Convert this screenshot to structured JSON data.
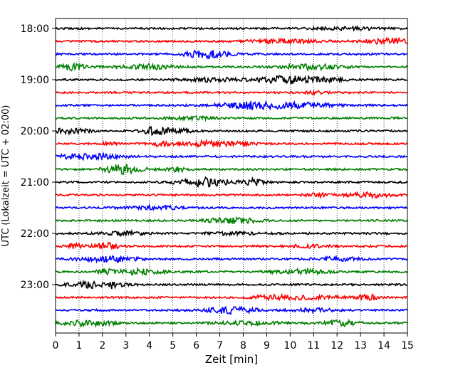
{
  "chart_data": {
    "type": "line",
    "title": "",
    "xlabel": "Zeit  [min]",
    "ylabel": "UTC (Lokalzeit = UTC + 02:00)",
    "xlim": [
      0,
      15
    ],
    "x_ticks": [
      "0",
      "1",
      "2",
      "3",
      "4",
      "5",
      "6",
      "7",
      "8",
      "9",
      "10",
      "11",
      "12",
      "13",
      "14",
      "15"
    ],
    "y_tick_labels": [
      "18:00",
      "19:00",
      "20:00",
      "21:00",
      "22:00",
      "23:00"
    ],
    "grid": "vertical dotted",
    "row_minutes": 15,
    "start_time": "18:00",
    "colors": [
      "#000000",
      "#ff0000",
      "#0000ff",
      "#008000"
    ],
    "rows": [
      {
        "time": "18:00",
        "color": "#000000"
      },
      {
        "time": "18:15",
        "color": "#ff0000"
      },
      {
        "time": "18:30",
        "color": "#0000ff"
      },
      {
        "time": "18:45",
        "color": "#008000"
      },
      {
        "time": "19:00",
        "color": "#000000"
      },
      {
        "time": "19:15",
        "color": "#ff0000"
      },
      {
        "time": "19:30",
        "color": "#0000ff"
      },
      {
        "time": "19:45",
        "color": "#008000"
      },
      {
        "time": "20:00",
        "color": "#000000"
      },
      {
        "time": "20:15",
        "color": "#ff0000"
      },
      {
        "time": "20:30",
        "color": "#0000ff"
      },
      {
        "time": "20:45",
        "color": "#008000"
      },
      {
        "time": "21:00",
        "color": "#000000"
      },
      {
        "time": "21:15",
        "color": "#ff0000"
      },
      {
        "time": "21:30",
        "color": "#0000ff"
      },
      {
        "time": "21:45",
        "color": "#008000"
      },
      {
        "time": "22:00",
        "color": "#000000"
      },
      {
        "time": "22:15",
        "color": "#ff0000"
      },
      {
        "time": "22:30",
        "color": "#0000ff"
      },
      {
        "time": "22:45",
        "color": "#008000"
      },
      {
        "time": "23:00",
        "color": "#000000"
      },
      {
        "time": "23:15",
        "color": "#ff0000"
      },
      {
        "time": "23:30",
        "color": "#0000ff"
      },
      {
        "time": "23:45",
        "color": "#008000"
      }
    ]
  }
}
